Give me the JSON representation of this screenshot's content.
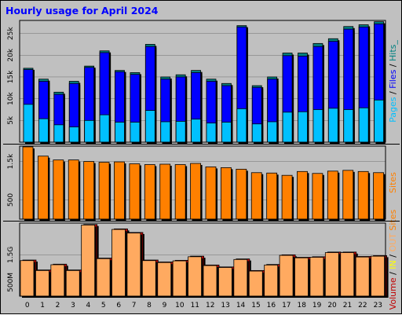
{
  "title": "Hourly usage for April 2024",
  "colors": {
    "background": "#c0c0c0",
    "pages": "#00c0ff",
    "files": "#0000ff",
    "hits": "#008080",
    "sites": "#ff8000",
    "volume": "#c00000",
    "in": "#ffaa60",
    "out": "#ffff00",
    "separator": "#000000",
    "title": "#0000ff"
  },
  "legend": {
    "top": [
      {
        "text": "Pages",
        "color": "#00c0ff"
      },
      {
        "text": " / ",
        "color": "#000000"
      },
      {
        "text": "Files",
        "color": "#0000ff"
      },
      {
        "text": " / ",
        "color": "#000000"
      },
      {
        "text": "Hits",
        "color": "#008080"
      },
      {
        "text": "_",
        "color": "#008080"
      }
    ],
    "middle": [
      {
        "text": "Sites",
        "color": "#ff8000"
      }
    ],
    "bottom": [
      {
        "text": "Volume",
        "color": "#c00000"
      },
      {
        "text": " / ",
        "color": "#000000"
      },
      {
        "text": "IN",
        "color": "#ffff00"
      },
      {
        "text": " / ",
        "color": "#000000"
      },
      {
        "text": "OUT",
        "color": "#ffaa60"
      },
      {
        "text": " ",
        "color": "#000000"
      },
      {
        "text": "Sites",
        "color": "#ff8000"
      }
    ]
  },
  "chart_data": [
    {
      "type": "bar",
      "panel": "hits-files-pages",
      "categories": [
        "0",
        "1",
        "2",
        "3",
        "4",
        "5",
        "6",
        "7",
        "8",
        "9",
        "10",
        "11",
        "12",
        "13",
        "14",
        "15",
        "16",
        "17",
        "18",
        "19",
        "20",
        "21",
        "22",
        "23"
      ],
      "series": [
        {
          "name": "Hits",
          "values": [
            17000,
            14500,
            11500,
            14000,
            17500,
            21000,
            16500,
            16000,
            22500,
            15000,
            15500,
            16500,
            14500,
            13500,
            26800,
            13000,
            15000,
            20500,
            20500,
            22700,
            23800,
            26600,
            27000,
            27700
          ]
        },
        {
          "name": "Files",
          "values": [
            16700,
            14000,
            11000,
            13500,
            17200,
            20600,
            16200,
            15600,
            22000,
            14500,
            15000,
            16000,
            14000,
            13000,
            26500,
            12600,
            14500,
            19900,
            19800,
            22000,
            23200,
            26000,
            26500,
            27200
          ]
        },
        {
          "name": "Pages",
          "values": [
            8700,
            5400,
            4000,
            3500,
            5000,
            6300,
            4600,
            4600,
            7300,
            4700,
            4800,
            5300,
            4400,
            4600,
            7700,
            4200,
            4700,
            6900,
            7000,
            7500,
            7800,
            7500,
            7900,
            9700
          ]
        }
      ],
      "yticks": [
        "5k",
        "10k",
        "15k",
        "20k",
        "25k"
      ],
      "ytick_values": [
        5000,
        10000,
        15000,
        20000,
        25000
      ],
      "ylim": [
        0,
        28000
      ]
    },
    {
      "type": "bar",
      "panel": "sites",
      "categories": [
        "0",
        "1",
        "2",
        "3",
        "4",
        "5",
        "6",
        "7",
        "8",
        "9",
        "10",
        "11",
        "12",
        "13",
        "14",
        "15",
        "16",
        "17",
        "18",
        "19",
        "20",
        "21",
        "22",
        "23"
      ],
      "series": [
        {
          "name": "Sites",
          "values": [
            1880,
            1640,
            1540,
            1540,
            1500,
            1480,
            1490,
            1440,
            1420,
            1430,
            1420,
            1450,
            1360,
            1340,
            1300,
            1210,
            1200,
            1140,
            1240,
            1190,
            1250,
            1270,
            1240,
            1210
          ]
        }
      ],
      "yticks": [
        "500",
        "1.5k"
      ],
      "ytick_values": [
        500,
        1500
      ],
      "ylim": [
        0,
        1900
      ]
    },
    {
      "type": "bar",
      "panel": "volume",
      "categories": [
        "0",
        "1",
        "2",
        "3",
        "4",
        "5",
        "6",
        "7",
        "8",
        "9",
        "10",
        "11",
        "12",
        "13",
        "14",
        "15",
        "16",
        "17",
        "18",
        "19",
        "20",
        "21",
        "22",
        "23"
      ],
      "series": [
        {
          "name": "Volume",
          "values": [
            1.31,
            0.95,
            1.16,
            0.95,
            2.6,
            1.38,
            2.44,
            2.31,
            1.31,
            1.24,
            1.3,
            1.45,
            1.13,
            1.06,
            1.35,
            0.93,
            1.15,
            1.5,
            1.41,
            1.43,
            1.6,
            1.6,
            1.44,
            1.47
          ]
        },
        {
          "name": "OUT",
          "values": [
            1.29,
            0.93,
            1.14,
            0.93,
            2.58,
            1.36,
            2.42,
            2.29,
            1.29,
            1.22,
            1.28,
            1.43,
            1.11,
            1.04,
            1.33,
            0.91,
            1.13,
            1.48,
            1.39,
            1.41,
            1.58,
            1.58,
            1.42,
            1.45
          ]
        }
      ],
      "yticks": [
        "500M",
        "1.5G"
      ],
      "ytick_values": [
        0.5,
        1.5
      ],
      "ylim": [
        0,
        2.65
      ]
    }
  ]
}
